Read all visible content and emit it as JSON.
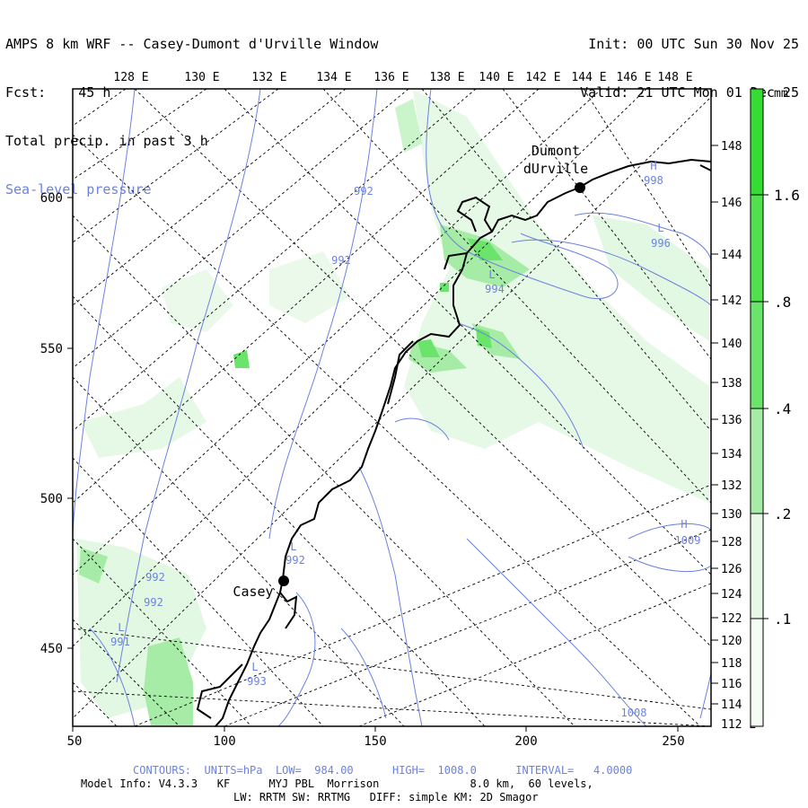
{
  "header": {
    "title": "AMPS 8 km WRF -- Casey-Dumont d'Urville Window",
    "fcst_label": "Fcst:",
    "fcst_value": "45 h",
    "field1": "Total precip. in past 3 h",
    "field2": "Sea-level pressure",
    "init": "Init: 00 UTC Sun 30 Nov 25",
    "valid": "Valid: 21 UTC Mon 01 Dec 25"
  },
  "axes": {
    "bottom_ticks": [
      "50",
      "100",
      "150",
      "200",
      "250"
    ],
    "left_ticks": [
      "600",
      "550",
      "500",
      "450"
    ],
    "top_lon": [
      "128 E",
      "130 E",
      "132 E",
      "134 E",
      "136 E",
      "138 E",
      "140 E",
      "142 E",
      "144 E",
      "146 E",
      "148 E"
    ],
    "right_lon": [
      "148 E",
      "146 E",
      "144 E",
      "142 E",
      "140 E",
      "138 E",
      "136 E",
      "134 E",
      "132 E",
      "130 E",
      "128 E",
      "126 E",
      "124 E",
      "122 E",
      "120 E",
      "118 E",
      "116 E",
      "114 E",
      "112 E"
    ]
  },
  "stations": [
    {
      "name1": "Dumont",
      "name2": "dUrville"
    },
    {
      "name1": "Casey"
    }
  ],
  "pressure_labels": [
    "992",
    "992",
    "L",
    "994",
    "H",
    "998",
    "L",
    "996",
    "L",
    "992",
    "992",
    "992",
    "L",
    "991",
    "L",
    "993",
    "H",
    "1009",
    "1008"
  ],
  "colorbar": {
    "unit": "mm",
    "labels": [
      "1.6",
      ".8",
      ".4",
      ".2",
      ".1"
    ],
    "colors": [
      "#f4fcf4",
      "#d4f4d4",
      "#a6eca6",
      "#6ae46a",
      "#34dc34"
    ]
  },
  "footer": {
    "contours": "CONTOURS:  UNITS=hPa  LOW=  984.00      HIGH=  1008.0      INTERVAL=   4.0000",
    "info1": "Model Info: V4.3.3   KF      MYJ PBL  Morrison              8.0 km,  60 levels,",
    "info2": "LW: RRTM SW: RRTMG   DIFF: simple KM: 2D Smagor"
  }
}
